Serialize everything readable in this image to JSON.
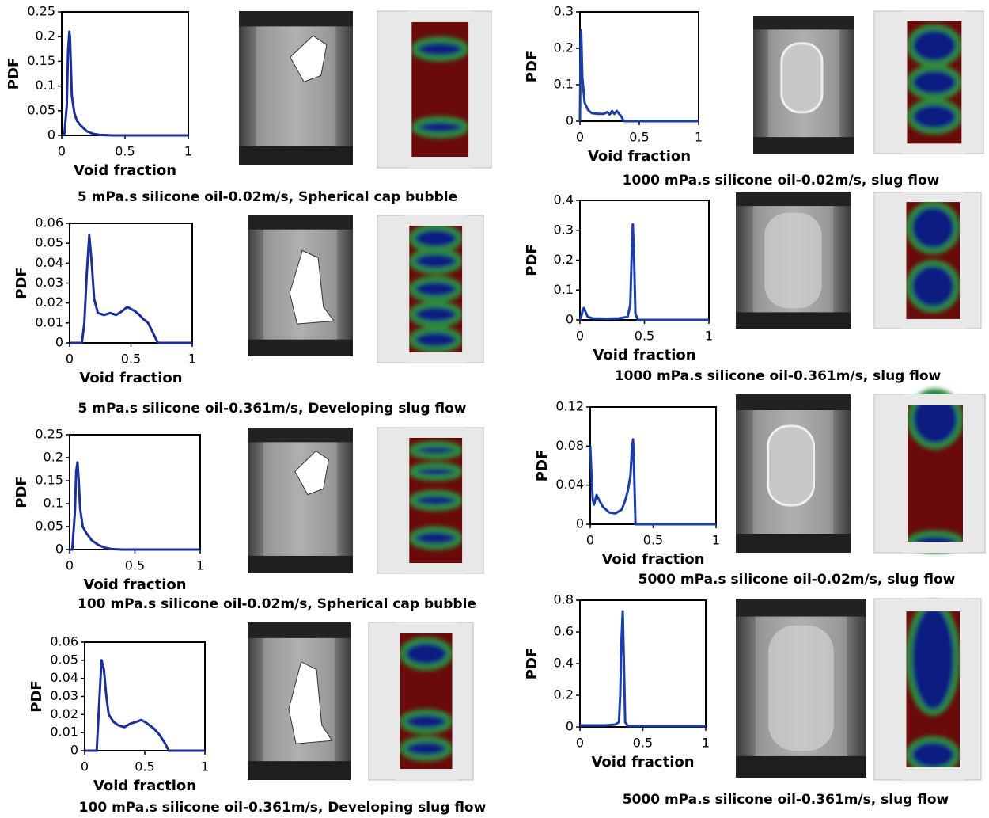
{
  "chart_data": [
    {
      "type": "line",
      "caption": "5 mPa.s silicone oil-0.02m/s, Spherical cap bubble",
      "xlabel": "Void fraction",
      "ylabel": "PDF",
      "color": "#1a2f9a",
      "x": [
        0.02,
        0.04,
        0.05,
        0.06,
        0.065,
        0.07,
        0.08,
        0.1,
        0.12,
        0.15,
        0.2,
        0.25,
        0.3,
        0.4,
        0.6,
        0.8,
        1
      ],
      "values": [
        0,
        0.06,
        0.17,
        0.21,
        0.2,
        0.16,
        0.08,
        0.045,
        0.03,
        0.02,
        0.008,
        0.003,
        0.001,
        0,
        0,
        0,
        0
      ],
      "xlim": [
        0,
        1
      ],
      "xticks": [
        0,
        0.5,
        1
      ],
      "ylim": [
        0,
        0.25
      ],
      "yticks": [
        0,
        0.05,
        0.1,
        0.15,
        0.2,
        0.25
      ]
    },
    {
      "type": "line",
      "caption": "5 mPa.s silicone oil-0.361m/s, Developing slug flow",
      "xlabel": "Void fraction",
      "ylabel": "PDF",
      "color": "#1a2f9a",
      "x": [
        0,
        0.1,
        0.12,
        0.14,
        0.16,
        0.18,
        0.2,
        0.23,
        0.28,
        0.33,
        0.38,
        0.43,
        0.47,
        0.5,
        0.53,
        0.57,
        0.6,
        0.64,
        0.68,
        0.72,
        0.8,
        1
      ],
      "values": [
        0,
        0,
        0.01,
        0.035,
        0.054,
        0.04,
        0.022,
        0.015,
        0.014,
        0.015,
        0.014,
        0.016,
        0.018,
        0.017,
        0.016,
        0.014,
        0.012,
        0.01,
        0.005,
        0,
        0,
        0
      ],
      "xlim": [
        0,
        1
      ],
      "xticks": [
        0,
        0.5,
        1
      ],
      "ylim": [
        0,
        0.06
      ],
      "yticks": [
        0,
        0.01,
        0.02,
        0.03,
        0.04,
        0.05,
        0.06
      ]
    },
    {
      "type": "line",
      "caption": "100 mPa.s silicone oil-0.02m/s, Spherical cap bubble",
      "xlabel": "Void fraction",
      "ylabel": "PDF",
      "color": "#1a2f9a",
      "x": [
        0,
        0.02,
        0.04,
        0.05,
        0.06,
        0.07,
        0.08,
        0.1,
        0.13,
        0.17,
        0.22,
        0.27,
        0.32,
        0.4,
        0.6,
        0.8,
        1
      ],
      "values": [
        0,
        0,
        0.08,
        0.17,
        0.19,
        0.15,
        0.09,
        0.05,
        0.035,
        0.02,
        0.01,
        0.004,
        0.001,
        0,
        0,
        0,
        0
      ],
      "xlim": [
        0,
        1
      ],
      "xticks": [
        0,
        0.5,
        1
      ],
      "ylim": [
        0,
        0.25
      ],
      "yticks": [
        0,
        0.05,
        0.1,
        0.15,
        0.2,
        0.25
      ]
    },
    {
      "type": "line",
      "caption": "100 mPa.s silicone oil-0.361m/s, Developing slug flow",
      "xlabel": "Void fraction",
      "ylabel": "PDF",
      "color": "#1a2f9a",
      "x": [
        0,
        0.1,
        0.12,
        0.14,
        0.16,
        0.18,
        0.2,
        0.24,
        0.28,
        0.33,
        0.38,
        0.43,
        0.47,
        0.5,
        0.54,
        0.58,
        0.62,
        0.66,
        0.7,
        0.8,
        1
      ],
      "values": [
        0,
        0,
        0.025,
        0.05,
        0.045,
        0.03,
        0.02,
        0.016,
        0.014,
        0.013,
        0.015,
        0.016,
        0.017,
        0.016,
        0.014,
        0.012,
        0.009,
        0.005,
        0,
        0,
        0
      ],
      "xlim": [
        0,
        1
      ],
      "xticks": [
        0,
        0.5,
        1
      ],
      "ylim": [
        0,
        0.06
      ],
      "yticks": [
        0,
        0.01,
        0.02,
        0.03,
        0.04,
        0.05,
        0.06
      ]
    },
    {
      "type": "line",
      "caption": "1000 mPa.s silicone oil-0.02m/s, slug flow",
      "xlabel": "Void fraction",
      "ylabel": "PDF",
      "color": "#1a3fa8",
      "x": [
        0,
        0.005,
        0.01,
        0.02,
        0.04,
        0.07,
        0.1,
        0.15,
        0.2,
        0.23,
        0.25,
        0.27,
        0.29,
        0.31,
        0.33,
        0.35,
        0.37,
        0.4,
        0.6,
        0.8,
        1
      ],
      "values": [
        0,
        0.2,
        0.25,
        0.12,
        0.05,
        0.03,
        0.022,
        0.02,
        0.02,
        0.025,
        0.018,
        0.028,
        0.02,
        0.028,
        0.02,
        0.012,
        0,
        0,
        0,
        0,
        0
      ],
      "xlim": [
        0,
        1
      ],
      "xticks": [
        0,
        0.5,
        1
      ],
      "ylim": [
        0,
        0.3
      ],
      "yticks": [
        0,
        0.1,
        0.2,
        0.3
      ]
    },
    {
      "type": "line",
      "caption": "1000 mPa.s silicone oil-0.361m/s, slug flow",
      "xlabel": "Void fraction",
      "ylabel": "PDF",
      "color": "#1a3fa8",
      "x": [
        0,
        0.01,
        0.02,
        0.03,
        0.04,
        0.06,
        0.1,
        0.2,
        0.3,
        0.37,
        0.39,
        0.4,
        0.41,
        0.42,
        0.43,
        0.45,
        0.6,
        0.8,
        1
      ],
      "values": [
        0,
        0.01,
        0.03,
        0.04,
        0.03,
        0.01,
        0.005,
        0.004,
        0.005,
        0.01,
        0.05,
        0.2,
        0.32,
        0.2,
        0.02,
        0,
        0,
        0,
        0
      ],
      "xlim": [
        0,
        1
      ],
      "xticks": [
        0,
        0.5,
        1
      ],
      "ylim": [
        0,
        0.4
      ],
      "yticks": [
        0,
        0.1,
        0.2,
        0.3,
        0.4
      ]
    },
    {
      "type": "line",
      "caption": "5000 mPa.s silicone oil-0.02m/s, slug flow",
      "xlabel": "Void fraction",
      "ylabel": "PDF",
      "color": "#1a3fa8",
      "x": [
        0,
        0.01,
        0.02,
        0.03,
        0.05,
        0.07,
        0.1,
        0.15,
        0.2,
        0.25,
        0.28,
        0.3,
        0.32,
        0.33,
        0.34,
        0.35,
        0.36,
        0.4,
        0.6,
        0.8,
        1
      ],
      "values": [
        0.08,
        0.05,
        0.025,
        0.02,
        0.03,
        0.025,
        0.018,
        0.012,
        0.011,
        0.015,
        0.025,
        0.035,
        0.05,
        0.075,
        0.087,
        0.05,
        0,
        0,
        0,
        0,
        0
      ],
      "xlim": [
        0,
        1
      ],
      "xticks": [
        0,
        0.5,
        1
      ],
      "ylim": [
        0,
        0.12
      ],
      "yticks": [
        0,
        0.04,
        0.08,
        0.12
      ]
    },
    {
      "type": "line",
      "caption": "5000 mPa.s silicone oil-0.361m/s, slug flow",
      "xlabel": "Void fraction",
      "ylabel": "PDF",
      "color": "#1a3fa8",
      "x": [
        0,
        0.1,
        0.2,
        0.28,
        0.31,
        0.32,
        0.33,
        0.34,
        0.35,
        0.36,
        0.38,
        0.5,
        0.8,
        1
      ],
      "values": [
        0.01,
        0.01,
        0.01,
        0.015,
        0.03,
        0.2,
        0.55,
        0.73,
        0.4,
        0.03,
        0.005,
        0.005,
        0.005,
        0.005
      ],
      "xlim": [
        0,
        1
      ],
      "xticks": [
        0,
        0.5,
        1
      ],
      "ylim": [
        0,
        0.8
      ],
      "yticks": [
        0,
        0.2,
        0.4,
        0.6,
        0.8
      ]
    }
  ]
}
